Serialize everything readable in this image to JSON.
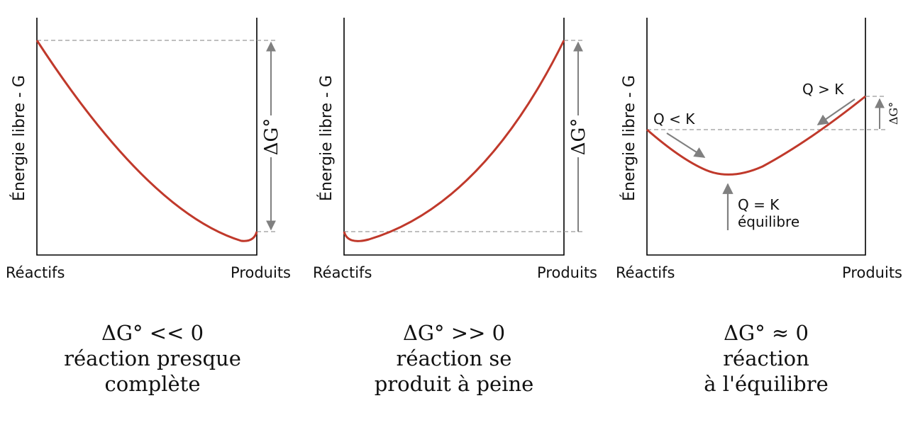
{
  "colors": {
    "curve": "#c0392b",
    "axis": "#000000",
    "dashed": "#999999",
    "arrow": "#808080"
  },
  "panels": [
    {
      "ylabel": "Énergie libre - G",
      "xstart": "Réactifs",
      "xend": "Produits",
      "delta_label": "ΔG°",
      "caption": [
        "ΔG° << 0",
        "réaction presque",
        "complète"
      ]
    },
    {
      "ylabel": "Énergie libre - G",
      "xstart": "Réactifs",
      "xend": "Produits",
      "delta_label": "ΔG°",
      "caption": [
        "ΔG° >> 0",
        "réaction se",
        "produit à peine"
      ]
    },
    {
      "ylabel": "Énergie libre - G",
      "xstart": "Réactifs",
      "xend": "Produits",
      "delta_label": "ΔG°",
      "annotations": {
        "q_less": "Q < K",
        "q_greater": "Q > K",
        "q_equal": "Q = K",
        "equilibrium": "équilibre"
      },
      "caption": [
        "ΔG° ≈ 0",
        "réaction",
        "à l'équilibre"
      ]
    }
  ]
}
